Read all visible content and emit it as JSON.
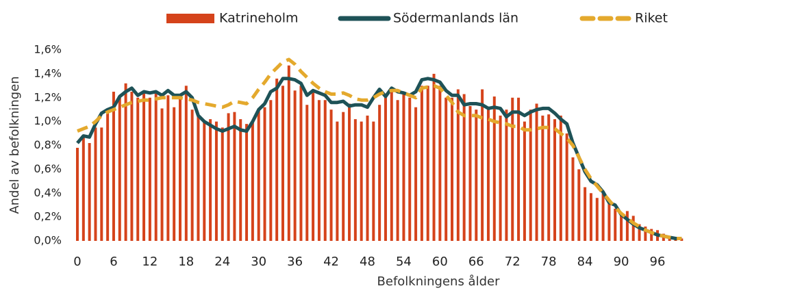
{
  "chart_data": {
    "type": "combo",
    "xlabel": "Befolkningens ålder",
    "ylabel": "Andel av befolkningen",
    "categories": [
      "0",
      null,
      null,
      null,
      null,
      null,
      "6",
      null,
      null,
      null,
      null,
      null,
      "12",
      null,
      null,
      null,
      null,
      null,
      "18",
      null,
      null,
      null,
      null,
      null,
      "24",
      null,
      null,
      null,
      null,
      null,
      "30",
      null,
      null,
      null,
      null,
      null,
      "36",
      null,
      null,
      null,
      null,
      null,
      "42",
      null,
      null,
      null,
      null,
      null,
      "48",
      null,
      null,
      null,
      null,
      null,
      "54",
      null,
      null,
      null,
      null,
      null,
      "60",
      null,
      null,
      null,
      null,
      null,
      "66",
      null,
      null,
      null,
      null,
      null,
      "72",
      null,
      null,
      null,
      null,
      null,
      "78",
      null,
      null,
      null,
      null,
      null,
      "84",
      null,
      null,
      null,
      null,
      null,
      "90",
      null,
      null,
      null,
      null,
      null,
      "96",
      null,
      null,
      null,
      null
    ],
    "ylim": [
      0,
      1.6
    ],
    "yticks": [
      {
        "value": 0,
        "label": "0,0%"
      },
      {
        "value": 0.2,
        "label": "0,2%"
      },
      {
        "value": 0.4,
        "label": "0,4%"
      },
      {
        "value": 0.6,
        "label": "0,6%"
      },
      {
        "value": 0.8,
        "label": "0,8%"
      },
      {
        "value": 1.0,
        "label": "1,0%"
      },
      {
        "value": 1.2,
        "label": "1,2%"
      },
      {
        "value": 1.4,
        "label": "1,4%"
      },
      {
        "value": 1.6,
        "label": "1,6%"
      }
    ],
    "legend": "top",
    "series": [
      {
        "name": "Katrineholm",
        "type": "bar",
        "color": "#d5431b",
        "values": [
          0.78,
          0.87,
          0.82,
          0.95,
          0.95,
          1.1,
          1.25,
          1.2,
          1.32,
          1.25,
          1.2,
          1.25,
          1.2,
          1.25,
          1.11,
          1.22,
          1.12,
          1.2,
          1.3,
          1.1,
          1.05,
          1.0,
          1.02,
          1.0,
          0.95,
          1.07,
          1.08,
          1.02,
          0.98,
          1.0,
          1.1,
          1.12,
          1.18,
          1.36,
          1.3,
          1.47,
          1.26,
          1.3,
          1.14,
          1.25,
          1.18,
          1.18,
          1.1,
          1.0,
          1.08,
          1.15,
          1.02,
          1.0,
          1.05,
          1.0,
          1.14,
          1.2,
          1.28,
          1.18,
          1.25,
          1.2,
          1.12,
          1.3,
          1.3,
          1.4,
          1.3,
          1.2,
          1.2,
          1.27,
          1.23,
          1.13,
          1.1,
          1.27,
          1.1,
          1.21,
          1.05,
          1.1,
          1.2,
          1.2,
          1.0,
          1.1,
          1.15,
          1.05,
          1.06,
          1.02,
          1.05,
          0.9,
          0.7,
          0.6,
          0.45,
          0.4,
          0.36,
          0.4,
          0.32,
          0.27,
          0.22,
          0.25,
          0.21,
          0.14,
          0.12,
          0.1,
          0.09,
          0.06,
          0.04,
          0.03,
          0.02
        ]
      },
      {
        "name": "Södermanlands län",
        "type": "line",
        "color": "#1e5257",
        "values": [
          0.82,
          0.88,
          0.87,
          0.98,
          1.07,
          1.1,
          1.12,
          1.21,
          1.25,
          1.28,
          1.22,
          1.25,
          1.24,
          1.25,
          1.22,
          1.26,
          1.22,
          1.22,
          1.25,
          1.2,
          1.05,
          1.0,
          0.97,
          0.94,
          0.92,
          0.94,
          0.96,
          0.93,
          0.92,
          1.0,
          1.1,
          1.15,
          1.25,
          1.28,
          1.36,
          1.36,
          1.35,
          1.32,
          1.22,
          1.26,
          1.24,
          1.22,
          1.16,
          1.16,
          1.17,
          1.13,
          1.14,
          1.14,
          1.12,
          1.2,
          1.27,
          1.21,
          1.28,
          1.25,
          1.24,
          1.22,
          1.25,
          1.35,
          1.36,
          1.35,
          1.33,
          1.26,
          1.22,
          1.22,
          1.14,
          1.15,
          1.15,
          1.14,
          1.11,
          1.12,
          1.11,
          1.04,
          1.08,
          1.08,
          1.05,
          1.08,
          1.1,
          1.11,
          1.11,
          1.07,
          1.02,
          0.98,
          0.82,
          0.7,
          0.58,
          0.5,
          0.47,
          0.41,
          0.32,
          0.3,
          0.22,
          0.18,
          0.14,
          0.11,
          0.09,
          0.07,
          0.05,
          0.04,
          0.03,
          0.02,
          0.02
        ]
      },
      {
        "name": "Riket",
        "type": "line",
        "style": "dashed",
        "color": "#e4a92d",
        "values": [
          0.92,
          0.94,
          0.96,
          1.0,
          1.05,
          1.08,
          1.1,
          1.12,
          1.14,
          1.16,
          1.17,
          1.18,
          1.18,
          1.19,
          1.2,
          1.2,
          1.2,
          1.2,
          1.19,
          1.18,
          1.16,
          1.15,
          1.14,
          1.13,
          1.12,
          1.14,
          1.17,
          1.16,
          1.15,
          1.2,
          1.27,
          1.33,
          1.4,
          1.45,
          1.5,
          1.52,
          1.48,
          1.42,
          1.37,
          1.32,
          1.28,
          1.25,
          1.23,
          1.23,
          1.24,
          1.22,
          1.19,
          1.18,
          1.18,
          1.2,
          1.23,
          1.25,
          1.26,
          1.26,
          1.24,
          1.22,
          1.2,
          1.28,
          1.29,
          1.3,
          1.28,
          1.22,
          1.16,
          1.08,
          1.05,
          1.05,
          1.05,
          1.03,
          1.02,
          1.0,
          0.99,
          0.98,
          0.96,
          0.96,
          0.93,
          0.93,
          0.94,
          0.95,
          0.95,
          0.94,
          0.9,
          0.86,
          0.8,
          0.7,
          0.6,
          0.52,
          0.46,
          0.4,
          0.34,
          0.28,
          0.23,
          0.19,
          0.15,
          0.12,
          0.09,
          0.07,
          0.05,
          0.04,
          0.03,
          0.02,
          0.02
        ]
      }
    ]
  }
}
